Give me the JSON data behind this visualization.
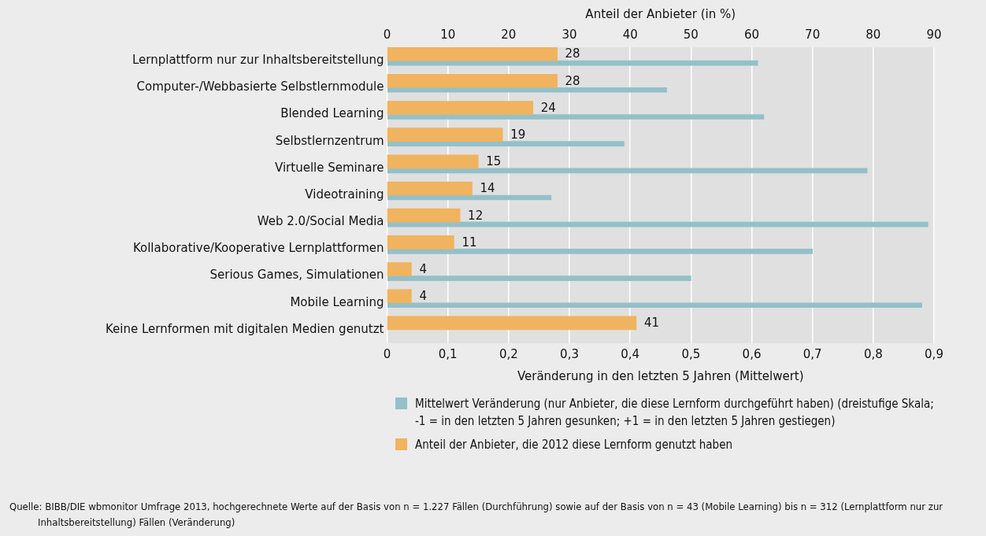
{
  "chart_data": {
    "type": "bar",
    "orientation": "horizontal",
    "x2label": "Anteil der Anbieter (in %)",
    "xlabel": "Veränderung in den letzten 5 Jahren (Mittelwert)",
    "categories": [
      "Lernplattform nur zur Inhaltsbereitstellung",
      "Computer-/Webbasierte Selbstlernmodule",
      "Blended Learning",
      "Selbstlernzentrum",
      "Virtuelle Seminare",
      "Videotraining",
      "Web 2.0/Social Media",
      "Kollaborative/Kooperative Lernplattformen",
      "Serious Games, Simulationen",
      "Mobile Learning",
      "Keine Lernformen mit digitalen Medien genutzt"
    ],
    "series": [
      {
        "name": "Anteil der Anbieter, die 2012 diese Lernform genutzt haben",
        "color": "#f0b35f",
        "axis": "x2",
        "values": [
          28,
          28,
          24,
          19,
          15,
          14,
          12,
          11,
          4,
          4,
          41
        ],
        "value_labels": [
          "28",
          "28",
          "24",
          "19",
          "15",
          "14",
          "12",
          "11",
          "4",
          "4",
          "41"
        ]
      },
      {
        "name": "Mittelwert Veränderung (nur Anbieter, die diese Lernform durchgeführt haben) (dreistufige Skala; -1 = in den letzten 5 Jahren gesunken; +1 = in den letzten 5 Jahren gestiegen)",
        "color": "#93c0c9",
        "values": [
          0.61,
          0.46,
          0.62,
          0.39,
          0.79,
          0.27,
          0.89,
          0.7,
          0.5,
          0.88,
          null
        ]
      }
    ],
    "xlim": [
      0,
      0.9
    ],
    "xticks": [
      {
        "value": 0,
        "label": "0"
      },
      {
        "value": 0.1,
        "label": "0,1"
      },
      {
        "value": 0.2,
        "label": "0,2"
      },
      {
        "value": 0.3,
        "label": "0,3"
      },
      {
        "value": 0.4,
        "label": "0,4"
      },
      {
        "value": 0.5,
        "label": "0,5"
      },
      {
        "value": 0.6,
        "label": "0,6"
      },
      {
        "value": 0.7,
        "label": "0,7"
      },
      {
        "value": 0.8,
        "label": "0,8"
      },
      {
        "value": 0.9,
        "label": "0,9"
      }
    ],
    "x2lim": [
      0,
      90
    ],
    "x2ticks": [
      0,
      10,
      20,
      30,
      40,
      50,
      60,
      70,
      80,
      90
    ],
    "grid": "x",
    "legend": "bottom",
    "annotations": [
      "Quelle: BIBB/DIE wbmonitor Umfrage 2013, hochgerechnete Werte auf der Basis von n = 1.227 Fällen (Durchführung) sowie auf der Basis von n = 43 (Mobile Learning) bis n = 312 (Lernplattform nur zur Inhaltsbereitstellung) Fällen (Veränderung)"
    ]
  }
}
